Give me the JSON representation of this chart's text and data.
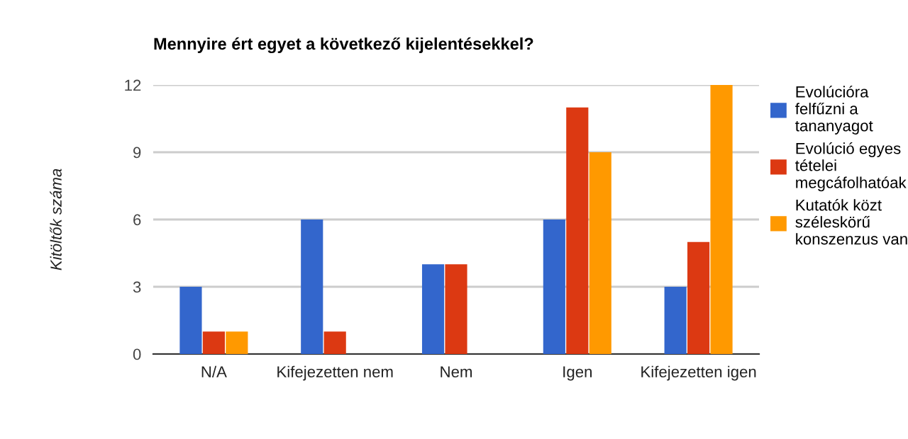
{
  "chart_data": {
    "type": "bar",
    "title": "Mennyire ért egyet a következő kijelentésekkel?",
    "ylabel": "Kitöltők száma",
    "categories": [
      "N/A",
      "Kifejezetten nem",
      "Nem",
      "Igen",
      "Kifejezetten igen"
    ],
    "series": [
      {
        "name": "Evolúcióra\nfelfűzni a\ntananyagot",
        "color": "#3366cc",
        "values": [
          3,
          6,
          4,
          6,
          3
        ]
      },
      {
        "name": "Evolúció egyes\ntételei\nmegcáfolhatóak",
        "color": "#dc3912",
        "values": [
          1,
          1,
          4,
          11,
          5
        ]
      },
      {
        "name": "Kutatók közt\nszéleskörű\nkonszenzus van",
        "color": "#ff9900",
        "values": [
          1,
          0,
          0,
          9,
          12
        ]
      }
    ],
    "ylim": [
      0,
      12
    ],
    "yticks": [
      0,
      3,
      6,
      9,
      12
    ],
    "grid": "y",
    "legend": "right"
  }
}
